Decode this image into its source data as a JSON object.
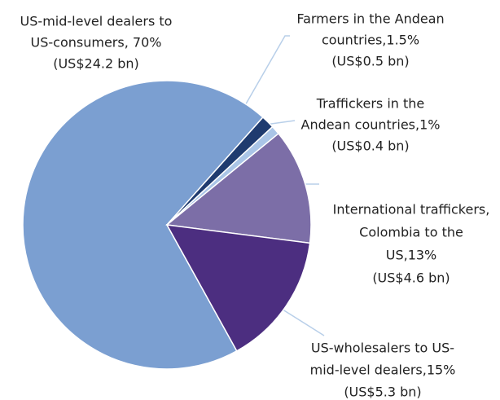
{
  "chart_data": {
    "type": "pie",
    "categories": [
      "US-mid-level dealers to US-consumers",
      "Farmers in the Andean countries",
      "Traffickers in the Andean countries",
      "International traffickers, Colombia to the US",
      "US-wholesalers to US-mid-level dealers"
    ],
    "values": [
      70,
      1.5,
      1,
      13,
      15
    ],
    "value_labels": [
      [
        "US-mid-level dealers to",
        "US-consumers, 70%",
        "(US$24.2 bn)"
      ],
      [
        "Farmers in the Andean",
        "countries,1.5%",
        "(US$0.5 bn)"
      ],
      [
        "Traffickers in the",
        "Andean countries,1%",
        "(US$0.4 bn)"
      ],
      [
        "International traffickers,",
        "Colombia to the",
        "US,13%",
        "(US$4.6 bn)"
      ],
      [
        "US-wholesalers to US-",
        "mid-level dealers,15%",
        "(US$5.3 bn)"
      ]
    ],
    "colors": [
      "#7b9fd1",
      "#1f3b6f",
      "#aac5e7",
      "#7c6ea7",
      "#4c2e80"
    ]
  }
}
